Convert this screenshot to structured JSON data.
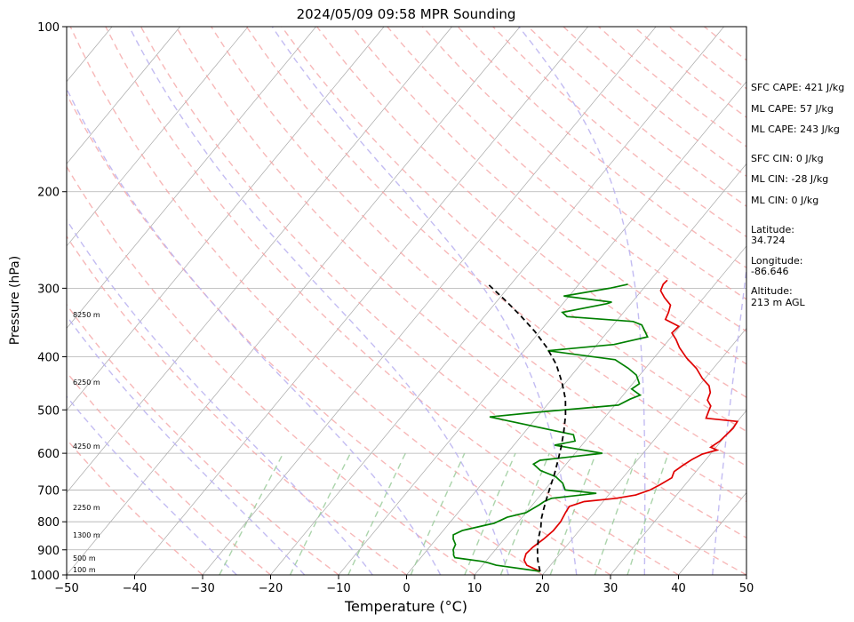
{
  "chart_data": {
    "type": "line",
    "title": "2024/05/09 09:58 MPR Sounding",
    "xlabel": "Temperature (°C)",
    "ylabel": "Pressure (hPa)",
    "xlim": [
      -50,
      50
    ],
    "ylim": [
      1000,
      100
    ],
    "yscale": "log",
    "skew": true,
    "x_ticks": [
      "−50",
      "−40",
      "−30",
      "−20",
      "−10",
      "0",
      "10",
      "20",
      "30",
      "40",
      "50"
    ],
    "y_ticks": [
      "100",
      "200",
      "300",
      "400",
      "500",
      "600",
      "700",
      "800",
      "900",
      "1000"
    ],
    "height_labels": [
      "8250 m",
      "6250 m",
      "4250 m",
      "2250 m",
      "1300 m",
      "500 m",
      "100 m"
    ],
    "annotations": [
      "SFC CAPE: 421 J/kg",
      "ML CAPE: 57 J/kg",
      "ML CAPE: 243 J/kg",
      "SFC CIN: 0 J/kg",
      "ML CIN: -28 J/kg",
      "ML CIN: 0 J/kg",
      "Latitude:",
      "34.724",
      "Longitude:",
      "-86.646",
      "Altitude:",
      "213 m AGL"
    ],
    "series": [
      {
        "role": "temperature",
        "color": "#e00000",
        "points": [
          [
            19.2,
            985
          ],
          [
            16.5,
            960
          ],
          [
            15.5,
            940
          ],
          [
            15.0,
            915
          ],
          [
            15.2,
            890
          ],
          [
            15.8,
            860
          ],
          [
            16.2,
            830
          ],
          [
            16.2,
            800
          ],
          [
            15.8,
            770
          ],
          [
            15.6,
            750
          ],
          [
            17.2,
            735
          ],
          [
            21.5,
            725
          ],
          [
            24.0,
            715
          ],
          [
            25.5,
            700
          ],
          [
            26.3,
            685
          ],
          [
            27.2,
            665
          ],
          [
            26.8,
            648
          ],
          [
            27.3,
            632
          ],
          [
            28.0,
            615
          ],
          [
            28.8,
            602
          ],
          [
            30.5,
            592
          ],
          [
            29.2,
            585
          ],
          [
            29.8,
            570
          ],
          [
            30.2,
            540
          ],
          [
            30.0,
            525
          ],
          [
            25.0,
            518
          ],
          [
            24.6,
            505
          ],
          [
            24.2,
            492
          ],
          [
            23.0,
            480
          ],
          [
            22.5,
            465
          ],
          [
            21.5,
            452
          ],
          [
            19.6,
            438
          ],
          [
            17.5,
            420
          ],
          [
            14.8,
            402
          ],
          [
            12.5,
            385
          ],
          [
            11.0,
            372
          ],
          [
            9.6,
            362
          ],
          [
            9.8,
            352
          ],
          [
            7.0,
            342
          ],
          [
            6.6,
            332
          ],
          [
            6.0,
            322
          ],
          [
            4.2,
            312
          ],
          [
            2.8,
            303
          ],
          [
            2.4,
            295
          ],
          [
            2.5,
            290
          ]
        ]
      },
      {
        "role": "dewpoint",
        "color": "#008000",
        "points": [
          [
            19.2,
            985
          ],
          [
            12.0,
            960
          ],
          [
            10.5,
            950
          ],
          [
            9.5,
            945
          ],
          [
            6.5,
            935
          ],
          [
            5.0,
            930
          ],
          [
            4.5,
            920
          ],
          [
            4.2,
            910
          ],
          [
            3.8,
            900
          ],
          [
            3.5,
            880
          ],
          [
            2.5,
            860
          ],
          [
            2.0,
            845
          ],
          [
            2.8,
            830
          ],
          [
            3.5,
            825
          ],
          [
            5.8,
            810
          ],
          [
            6.6,
            805
          ],
          [
            7.5,
            790
          ],
          [
            7.8,
            785
          ],
          [
            10.0,
            770
          ],
          [
            11.0,
            745
          ],
          [
            11.3,
            735
          ],
          [
            12.0,
            725
          ],
          [
            18.0,
            710
          ],
          [
            13.0,
            700
          ],
          [
            11.8,
            680
          ],
          [
            10.0,
            662
          ],
          [
            7.0,
            645
          ],
          [
            5.2,
            628
          ],
          [
            5.7,
            618
          ],
          [
            14.0,
            600
          ],
          [
            6.0,
            580
          ],
          [
            8.5,
            570
          ],
          [
            7.5,
            555
          ],
          [
            -7.0,
            515
          ],
          [
            -0.5,
            505
          ],
          [
            10.5,
            490
          ],
          [
            11.5,
            478
          ],
          [
            12.5,
            470
          ],
          [
            10.5,
            458
          ],
          [
            11.0,
            448
          ],
          [
            9.5,
            432
          ],
          [
            7.5,
            420
          ],
          [
            4.5,
            405
          ],
          [
            -6.5,
            390
          ],
          [
            2.5,
            380
          ],
          [
            6.5,
            368
          ],
          [
            5.5,
            360
          ],
          [
            4.2,
            350
          ],
          [
            2.5,
            345
          ],
          [
            -7.8,
            338
          ],
          [
            -9.0,
            332
          ],
          [
            -3.5,
            320
          ],
          [
            -3.0,
            318
          ],
          [
            -10.8,
            310
          ],
          [
            -5.0,
            300
          ],
          [
            -2.8,
            295
          ]
        ]
      },
      {
        "role": "parcel",
        "color": "#000000",
        "points": [
          [
            19.2,
            985
          ],
          [
            17.5,
            940
          ],
          [
            16.2,
            900
          ],
          [
            15.0,
            860
          ],
          [
            14.0,
            820
          ],
          [
            13.0,
            790
          ],
          [
            12.2,
            760
          ],
          [
            11.3,
            725
          ],
          [
            10.4,
            690
          ],
          [
            9.5,
            655
          ],
          [
            8.4,
            620
          ],
          [
            7.2,
            585
          ],
          [
            5.8,
            550
          ],
          [
            4.0,
            512
          ],
          [
            2.0,
            478
          ],
          [
            -0.6,
            445
          ],
          [
            -3.6,
            413
          ],
          [
            -7.0,
            385
          ],
          [
            -10.7,
            360
          ],
          [
            -14.7,
            337
          ],
          [
            -19.0,
            315
          ],
          [
            -21.8,
            302
          ],
          [
            -23.8,
            293
          ]
        ]
      }
    ]
  },
  "colors": {
    "temperature": "#e00000",
    "dewpoint": "#008000",
    "parcel": "#000000",
    "dry_adiabat": "#f4a0a0",
    "moist_adiabat": "#b9b0f0",
    "mixing_ratio": "#9ccc9c",
    "isotherm": "#a8a8a8",
    "grid": "#b0b0b0"
  }
}
